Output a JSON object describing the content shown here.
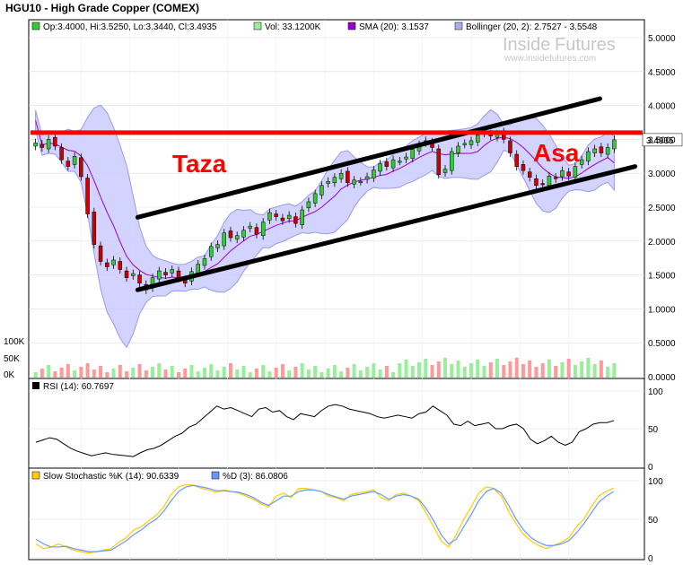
{
  "title": "HGU10 - High Grade Copper (COMEX)",
  "legend_main": {
    "ohlc": "Op:3.4000, Hi:3.5250, Lo:3.3440, Cl:3.4935",
    "vol": "Vol: 33.1200K",
    "sma": "SMA (20): 3.1537",
    "boll": "Bollinger (20, 2): 2.7527 - 3.5548"
  },
  "legend_rsi": "RSI (14): 60.7697",
  "legend_stoch_k": "Slow Stochastic %K (14): 90.6339",
  "legend_stoch_d": "%D (3): 86.0806",
  "watermark": {
    "brand_left": "Inside",
    "brand_right": "Futures",
    "url": "www.insidefutures.com"
  },
  "annotations": {
    "left_text": "Taza",
    "right_text": "Asa"
  },
  "last_price_label": "3.4935",
  "colors": {
    "up": "#33cc33",
    "down": "#cc0000",
    "band": "#c8c8ff",
    "band_edge": "#9999ee",
    "sma": "#9900cc",
    "resistance": "#ff0000",
    "channel": "#000000",
    "vol_up": "#99ee99",
    "vol_down": "#ff9999",
    "stoch_k": "#ffcc00",
    "stoch_d": "#6699ff"
  },
  "chart_data": [
    {
      "type": "candlestick",
      "title": "HGU10 - High Grade Copper (COMEX)",
      "y_ticks": [
        "5.0000",
        "4.5000",
        "4.0000",
        "3.5000",
        "3.0000",
        "2.5000",
        "2.0000",
        "1.5000",
        "1.0000",
        "0.5000",
        "0.0000"
      ],
      "ylim": [
        0,
        5.25
      ],
      "vol_ticks": [
        "100K",
        "50K",
        "0K"
      ],
      "close": [
        3.45,
        3.38,
        3.5,
        3.4,
        3.2,
        3.1,
        3.25,
        2.95,
        2.4,
        1.95,
        1.7,
        1.62,
        1.72,
        1.58,
        1.46,
        1.52,
        1.38,
        1.28,
        1.46,
        1.56,
        1.5,
        1.58,
        1.45,
        1.38,
        1.55,
        1.66,
        1.74,
        1.92,
        1.95,
        2.12,
        2.05,
        2.08,
        2.16,
        2.22,
        2.1,
        2.28,
        2.42,
        2.36,
        2.3,
        2.38,
        2.26,
        2.46,
        2.58,
        2.7,
        2.82,
        2.88,
        2.94,
        3.0,
        2.86,
        2.9,
        2.88,
        2.95,
        3.05,
        3.14,
        3.1,
        3.2,
        3.18,
        3.24,
        3.35,
        3.42,
        3.48,
        3.38,
        2.98,
        3.06,
        3.32,
        3.4,
        3.44,
        3.48,
        3.56,
        3.6,
        3.55,
        3.58,
        3.5,
        3.3,
        3.1,
        3.04,
        2.94,
        2.82,
        2.84,
        2.96,
        2.92,
        3.04,
        2.96,
        3.1,
        3.2,
        3.32,
        3.36,
        3.3,
        3.38,
        3.4935
      ],
      "sma20_endpoints": [
        3.78,
        3.1537
      ],
      "bollinger_last": [
        2.7527,
        3.5548
      ],
      "resistance_level": 3.6,
      "channel_upper": [
        [
          0.18,
          2.35
        ],
        [
          0.97,
          4.1
        ]
      ],
      "channel_lower": [
        [
          0.18,
          1.28
        ],
        [
          0.97,
          3.02
        ]
      ]
    },
    {
      "type": "line",
      "title": "RSI (14)",
      "y_ticks": [
        "100",
        "50",
        "0"
      ],
      "ylim": [
        0,
        100
      ],
      "values": [
        32,
        35,
        38,
        36,
        30,
        24,
        20,
        17,
        14,
        16,
        18,
        16,
        15,
        14,
        13,
        18,
        22,
        24,
        28,
        34,
        40,
        44,
        52,
        56,
        64,
        72,
        80,
        76,
        78,
        74,
        70,
        66,
        76,
        78,
        72,
        74,
        66,
        62,
        70,
        68,
        66,
        74,
        80,
        82,
        80,
        76,
        74,
        72,
        70,
        66,
        64,
        66,
        68,
        66,
        64,
        70,
        72,
        80,
        74,
        68,
        56,
        54,
        60,
        54,
        56,
        58,
        50,
        50,
        54,
        56,
        50,
        36,
        30,
        34,
        40,
        32,
        28,
        32,
        46,
        50,
        56,
        58,
        58,
        60.77
      ]
    },
    {
      "type": "line",
      "title": "Slow Stochastic",
      "y_ticks": [
        "100",
        "50",
        "0"
      ],
      "ylim": [
        0,
        100
      ],
      "series": [
        {
          "name": "Slow Stochastic %K (14)",
          "values": [
            18,
            12,
            14,
            18,
            14,
            10,
            8,
            6,
            8,
            10,
            12,
            20,
            26,
            36,
            40,
            48,
            55,
            66,
            82,
            92,
            95,
            94,
            90,
            88,
            85,
            88,
            86,
            84,
            80,
            76,
            70,
            66,
            80,
            84,
            78,
            90,
            90,
            88,
            86,
            80,
            78,
            74,
            82,
            84,
            86,
            88,
            78,
            74,
            82,
            84,
            80,
            74,
            58,
            40,
            22,
            14,
            30,
            50,
            66,
            84,
            92,
            90,
            80,
            60,
            44,
            30,
            22,
            16,
            12,
            16,
            20,
            26,
            40,
            50,
            66,
            80,
            86,
            90.63
          ]
        },
        {
          "name": "%D (3)",
          "values": [
            24,
            18,
            14,
            14,
            15,
            12,
            10,
            8,
            8,
            9,
            10,
            16,
            22,
            30,
            36,
            44,
            50,
            60,
            74,
            86,
            92,
            94,
            92,
            90,
            87,
            87,
            86,
            85,
            82,
            78,
            72,
            68,
            74,
            80,
            80,
            86,
            88,
            88,
            86,
            82,
            79,
            76,
            80,
            82,
            84,
            86,
            82,
            76,
            80,
            82,
            80,
            76,
            64,
            48,
            30,
            18,
            24,
            40,
            56,
            74,
            86,
            90,
            84,
            68,
            50,
            36,
            26,
            20,
            16,
            16,
            18,
            22,
            32,
            44,
            58,
            72,
            80,
            86.08
          ]
        }
      ]
    }
  ]
}
